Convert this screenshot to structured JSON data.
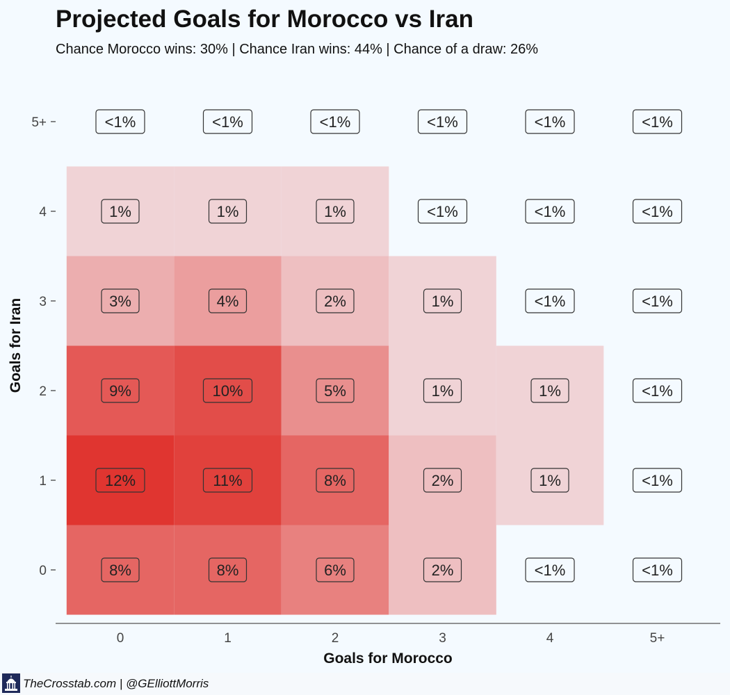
{
  "header": {
    "title": "Projected Goals for Morocco vs Iran",
    "subtitle": "Chance Morocco wins: 30% | Chance Iran wins: 44% | Chance of a draw: 26%"
  },
  "footer": {
    "credit": "TheCrosstab.com | @GElliottMorris"
  },
  "colors": {
    "background": "#f4faff",
    "high": "#e03530",
    "low": "#f3f0f4"
  },
  "chart_data": {
    "type": "heatmap",
    "title": "Projected Goals for Morocco vs Iran",
    "subtitle": "Chance Morocco wins: 30% | Chance Iran wins: 44% | Chance of a draw: 26%",
    "xlabel": "Goals for Morocco",
    "ylabel": "Goals for Iran",
    "x_categories": [
      "0",
      "1",
      "2",
      "3",
      "4",
      "5+"
    ],
    "y_categories": [
      "0",
      "1",
      "2",
      "3",
      "4",
      "5+"
    ],
    "grid": false,
    "cells": [
      {
        "x": "0",
        "y": "0",
        "value": 8,
        "label": "8%"
      },
      {
        "x": "1",
        "y": "0",
        "value": 8,
        "label": "8%"
      },
      {
        "x": "2",
        "y": "0",
        "value": 6,
        "label": "6%"
      },
      {
        "x": "3",
        "y": "0",
        "value": 2,
        "label": "2%"
      },
      {
        "x": "4",
        "y": "0",
        "value": 0,
        "label": "<1%"
      },
      {
        "x": "5+",
        "y": "0",
        "value": 0,
        "label": "<1%"
      },
      {
        "x": "0",
        "y": "1",
        "value": 12,
        "label": "12%"
      },
      {
        "x": "1",
        "y": "1",
        "value": 11,
        "label": "11%"
      },
      {
        "x": "2",
        "y": "1",
        "value": 8,
        "label": "8%"
      },
      {
        "x": "3",
        "y": "1",
        "value": 2,
        "label": "2%"
      },
      {
        "x": "4",
        "y": "1",
        "value": 1,
        "label": "1%"
      },
      {
        "x": "5+",
        "y": "1",
        "value": 0,
        "label": "<1%"
      },
      {
        "x": "0",
        "y": "2",
        "value": 9,
        "label": "9%"
      },
      {
        "x": "1",
        "y": "2",
        "value": 10,
        "label": "10%"
      },
      {
        "x": "2",
        "y": "2",
        "value": 5,
        "label": "5%"
      },
      {
        "x": "3",
        "y": "2",
        "value": 1,
        "label": "1%"
      },
      {
        "x": "4",
        "y": "2",
        "value": 1,
        "label": "1%"
      },
      {
        "x": "5+",
        "y": "2",
        "value": 0,
        "label": "<1%"
      },
      {
        "x": "0",
        "y": "3",
        "value": 3,
        "label": "3%"
      },
      {
        "x": "1",
        "y": "3",
        "value": 4,
        "label": "4%"
      },
      {
        "x": "2",
        "y": "3",
        "value": 2,
        "label": "2%"
      },
      {
        "x": "3",
        "y": "3",
        "value": 1,
        "label": "1%"
      },
      {
        "x": "4",
        "y": "3",
        "value": 0,
        "label": "<1%"
      },
      {
        "x": "5+",
        "y": "3",
        "value": 0,
        "label": "<1%"
      },
      {
        "x": "0",
        "y": "4",
        "value": 1,
        "label": "1%"
      },
      {
        "x": "1",
        "y": "4",
        "value": 1,
        "label": "1%"
      },
      {
        "x": "2",
        "y": "4",
        "value": 1,
        "label": "1%"
      },
      {
        "x": "3",
        "y": "4",
        "value": 0,
        "label": "<1%"
      },
      {
        "x": "4",
        "y": "4",
        "value": 0,
        "label": "<1%"
      },
      {
        "x": "5+",
        "y": "4",
        "value": 0,
        "label": "<1%"
      },
      {
        "x": "0",
        "y": "5+",
        "value": 0,
        "label": "<1%"
      },
      {
        "x": "1",
        "y": "5+",
        "value": 0,
        "label": "<1%"
      },
      {
        "x": "2",
        "y": "5+",
        "value": 0,
        "label": "<1%"
      },
      {
        "x": "3",
        "y": "5+",
        "value": 0,
        "label": "<1%"
      },
      {
        "x": "4",
        "y": "5+",
        "value": 0,
        "label": "<1%"
      },
      {
        "x": "5+",
        "y": "5+",
        "value": 0,
        "label": "<1%"
      }
    ]
  }
}
